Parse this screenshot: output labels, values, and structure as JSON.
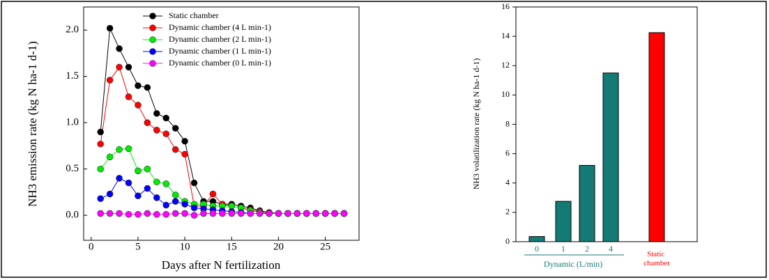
{
  "chart_data": [
    {
      "type": "line",
      "ylabel": "NH3 emission rate (kg N ha-1 d-1)",
      "xlabel": "Days after N fertilization",
      "x": [
        1,
        2,
        3,
        4,
        5,
        6,
        7,
        8,
        9,
        10,
        11,
        12,
        13,
        14,
        15,
        16,
        17,
        18,
        19,
        20,
        21,
        22,
        23,
        24,
        25,
        26,
        27
      ],
      "series": [
        {
          "name": "Static chamber",
          "color": "#000000",
          "values": [
            0.9,
            2.02,
            1.8,
            1.6,
            1.4,
            1.38,
            1.1,
            1.05,
            0.94,
            0.8,
            0.35,
            0.15,
            0.15,
            0.12,
            0.12,
            0.1,
            0.08,
            0.05,
            0.03,
            0.02,
            0.02,
            0.02,
            0.02,
            0.02,
            0.02,
            0.02,
            0.02
          ]
        },
        {
          "name": "Dynamic chamber (4 L min-1)",
          "color": "#ff0000",
          "values": [
            0.77,
            1.46,
            1.6,
            1.28,
            1.19,
            1.0,
            0.92,
            0.88,
            0.71,
            0.66,
            0.1,
            0.1,
            0.23,
            0.12,
            0.1,
            0.08,
            0.06,
            0.04,
            0.02,
            0.02,
            0.02,
            0.02,
            0.02,
            0.02,
            0.02,
            0.02,
            0.02
          ]
        },
        {
          "name": "Dynamic chamber (2 L min-1)",
          "color": "#00ee00",
          "values": [
            0.5,
            0.63,
            0.71,
            0.72,
            0.48,
            0.5,
            0.36,
            0.34,
            0.22,
            0.15,
            0.12,
            0.12,
            0.1,
            0.1,
            0.1,
            0.08,
            0.05,
            0.03,
            0.02,
            0.02,
            0.02,
            0.02,
            0.02,
            0.02,
            0.02,
            0.02,
            0.02
          ]
        },
        {
          "name": "Dynamic chamber (1 L min-1)",
          "color": "#0000ff",
          "values": [
            0.18,
            0.23,
            0.4,
            0.35,
            0.21,
            0.29,
            0.19,
            0.11,
            0.15,
            0.12,
            0.08,
            0.07,
            0.06,
            0.05,
            0.04,
            0.03,
            0.02,
            0.02,
            0.02,
            0.02,
            0.02,
            0.02,
            0.02,
            0.02,
            0.02,
            0.02,
            0.02
          ]
        },
        {
          "name": "Dynamic chamber (0 L min-1)",
          "color": "#ff00ff",
          "values": [
            0.02,
            0.02,
            0.02,
            0.01,
            0.01,
            0.02,
            0.01,
            0.01,
            0.02,
            0.02,
            0.0,
            0.02,
            0.02,
            0.02,
            0.02,
            0.02,
            0.02,
            0.02,
            0.02,
            0.02,
            0.02,
            0.02,
            0.02,
            0.02,
            0.02,
            0.02,
            0.02
          ]
        }
      ],
      "xlim": [
        -0.8,
        28.6
      ],
      "xticks": [
        0,
        5,
        10,
        15,
        20,
        25
      ],
      "ylim": [
        -0.27,
        2.25
      ],
      "yticks": [
        {
          "value": 0,
          "label": "0.0"
        },
        0.5,
        {
          "value": 1,
          "label": "1.0"
        },
        1.5,
        {
          "value": 2,
          "label": "2.0"
        }
      ],
      "legend": "upper-right"
    },
    {
      "type": "bar",
      "ylabel": "NH3 volatilization rate (kg N ha-1 d-1)",
      "group_label": "Dynamic (L/min)",
      "categories": [
        "0",
        "1",
        "2",
        "4",
        "Static chamber"
      ],
      "values": [
        0.35,
        2.75,
        5.2,
        11.5,
        14.25
      ],
      "colors": [
        "#137a76",
        "#137a76",
        "#137a76",
        "#137a76",
        "#ff0000"
      ],
      "ylim": [
        0,
        16
      ],
      "yticks": [
        0,
        2,
        4,
        6,
        8,
        10,
        12,
        14,
        16
      ]
    }
  ]
}
